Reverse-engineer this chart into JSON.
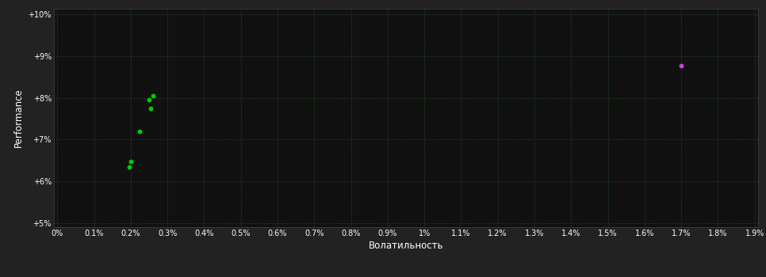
{
  "background_color": "#222222",
  "plot_bg_color": "#111111",
  "grid_color": "#2a4a2a",
  "text_color": "#ffffff",
  "tick_color": "#ffffff",
  "xlabel": "Волатильность",
  "ylabel": "Performance",
  "xlim": [
    -0.0001,
    0.0191
  ],
  "ylim": [
    0.049,
    0.1015
  ],
  "xtick_values": [
    0.0,
    0.001,
    0.002,
    0.003,
    0.004,
    0.005,
    0.006,
    0.007,
    0.008,
    0.009,
    0.01,
    0.011,
    0.012,
    0.013,
    0.014,
    0.015,
    0.016,
    0.017,
    0.018,
    0.019
  ],
  "xtick_labels": [
    "0%",
    "0.1%",
    "0.2%",
    "0.3%",
    "0.4%",
    "0.5%",
    "0.6%",
    "0.7%",
    "0.8%",
    "0.9%",
    "1%",
    "1.1%",
    "1.2%",
    "1.3%",
    "1.4%",
    "1.5%",
    "1.6%",
    "1.7%",
    "1.8%",
    "1.9%"
  ],
  "ytick_values": [
    0.05,
    0.06,
    0.07,
    0.08,
    0.09,
    0.1
  ],
  "ytick_labels": [
    "+5%",
    "+6%",
    "+7%",
    "+8%",
    "+9%",
    "+10%"
  ],
  "green_points": [
    [
      0.00195,
      0.0635
    ],
    [
      0.002,
      0.0648
    ],
    [
      0.0025,
      0.0795
    ],
    [
      0.00255,
      0.0775
    ],
    [
      0.0026,
      0.0805
    ],
    [
      0.00225,
      0.072
    ]
  ],
  "magenta_points": [
    [
      0.017,
      0.0878
    ]
  ],
  "green_color": "#00cc00",
  "magenta_color": "#cc44cc",
  "point_size": 18,
  "figsize": [
    9.66,
    3.5
  ],
  "dpi": 100
}
